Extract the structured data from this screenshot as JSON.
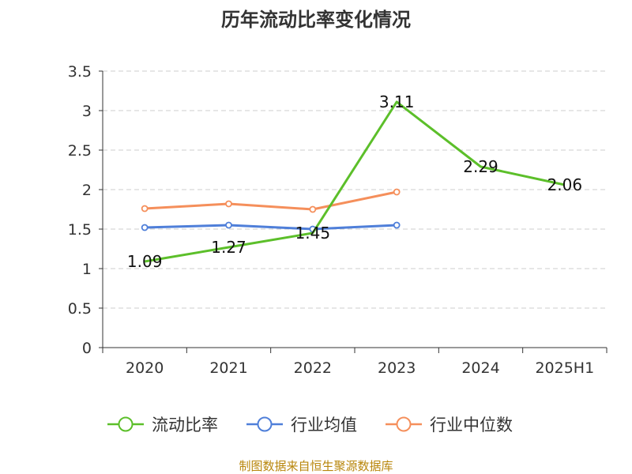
{
  "chart_data": {
    "type": "line",
    "title": "历年流动比率变化情况",
    "categories": [
      "2020",
      "2021",
      "2022",
      "2023",
      "2024",
      "2025H1"
    ],
    "ylim": [
      0,
      3.5
    ],
    "yticks": [
      "0",
      "0.5",
      "1",
      "1.5",
      "2",
      "2.5",
      "3",
      "3.5"
    ],
    "grid": true,
    "legend_position": "bottom",
    "series": [
      {
        "name": "流动比率",
        "color": "#5cbf2a",
        "values": [
          1.09,
          1.27,
          1.45,
          3.11,
          2.29,
          2.06
        ],
        "labels": [
          "1.09",
          "1.27",
          "1.45",
          "3.11",
          "2.29",
          "2.06"
        ],
        "show_labels": true,
        "markers": false
      },
      {
        "name": "行业均值",
        "color": "#4f7fd9",
        "values": [
          1.52,
          1.55,
          1.5,
          1.55,
          null,
          null
        ],
        "show_labels": false,
        "markers": true
      },
      {
        "name": "行业中位数",
        "color": "#f58f5b",
        "values": [
          1.76,
          1.82,
          1.75,
          1.97,
          null,
          null
        ],
        "show_labels": false,
        "markers": true
      }
    ]
  },
  "source": "制图数据来自恒生聚源数据库"
}
